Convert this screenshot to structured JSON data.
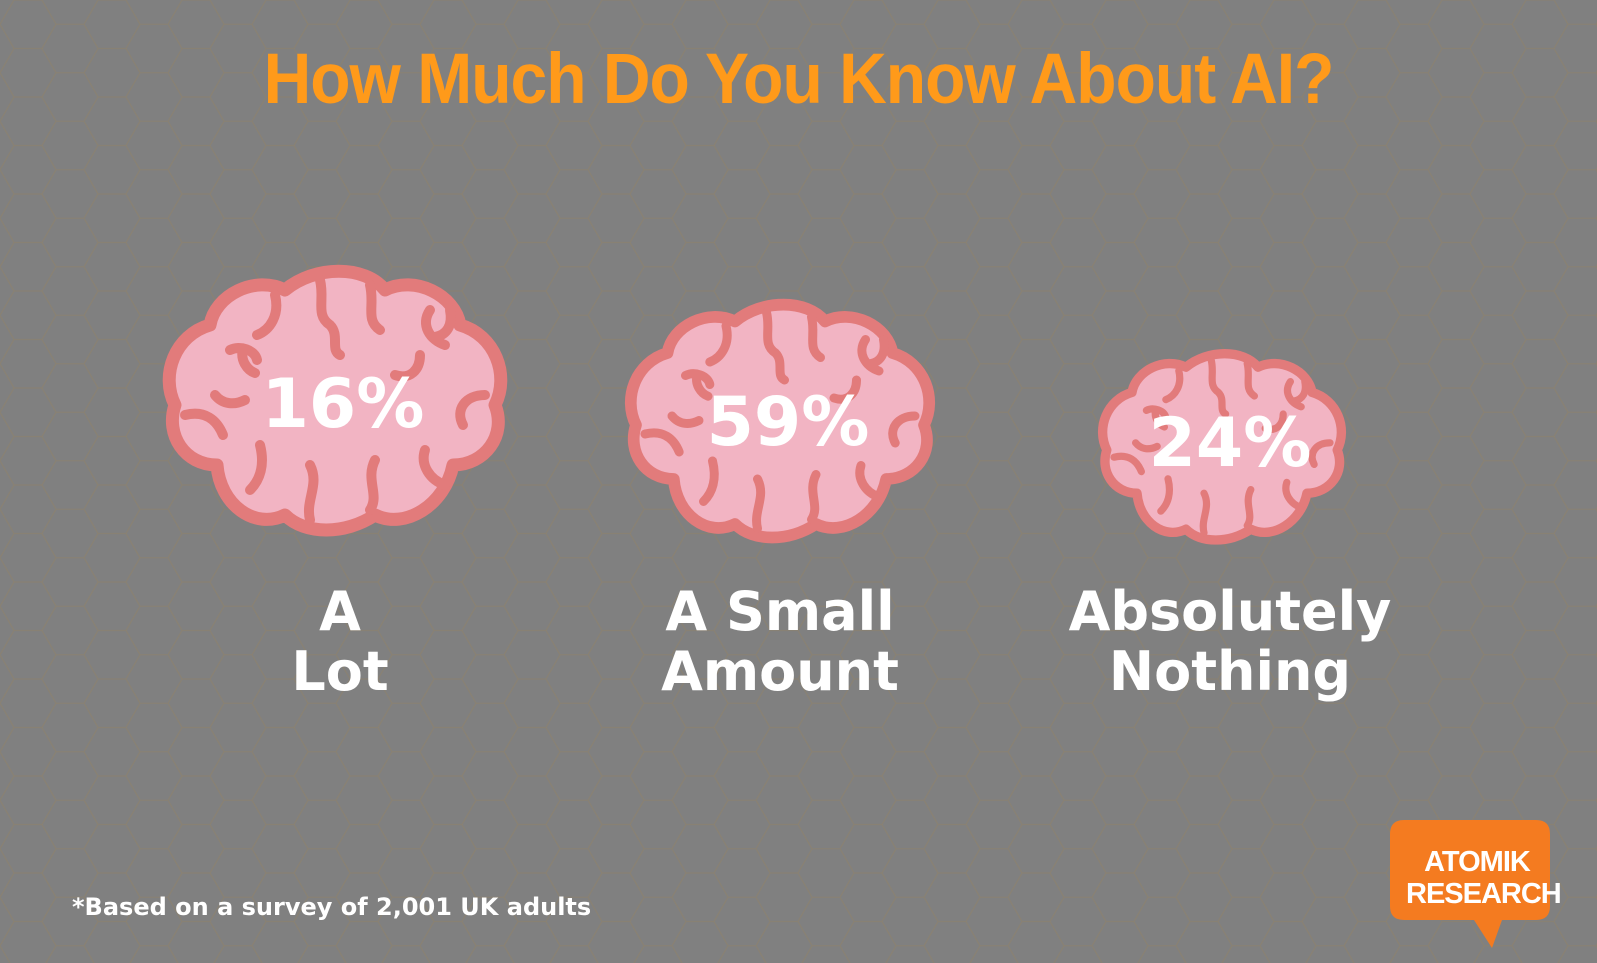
{
  "colors": {
    "background": "#808080",
    "hex_stroke": "#8c8270",
    "title": "#ff9a1a",
    "brain_fill": "#f2b4c3",
    "brain_outline": "#e27b7b",
    "text": "#ffffff",
    "logo": "#f47b20"
  },
  "chart_data": {
    "type": "pictograph",
    "title": "How Much Do You Know About AI?",
    "unit": "%",
    "categories": [
      "A Lot",
      "A Small Amount",
      "Absolutely Nothing"
    ],
    "values": [
      16,
      59,
      24
    ],
    "value_labels": [
      "16%",
      "59%",
      "24%"
    ],
    "icon": "brain-icon",
    "footnote": "*Based on a survey of 2,001 UK adults"
  },
  "labels": {
    "a_lot": {
      "line1": "A",
      "line2": "Lot"
    },
    "a_small_amount": {
      "line1": "A Small",
      "line2": "Amount"
    },
    "absolutely_nothing": {
      "line1": "Absolutely",
      "line2": "Nothing"
    }
  },
  "logo": {
    "line1": "ATOMIK",
    "line2": "RESEARCH",
    "icon": "speech-bubble-icon"
  }
}
